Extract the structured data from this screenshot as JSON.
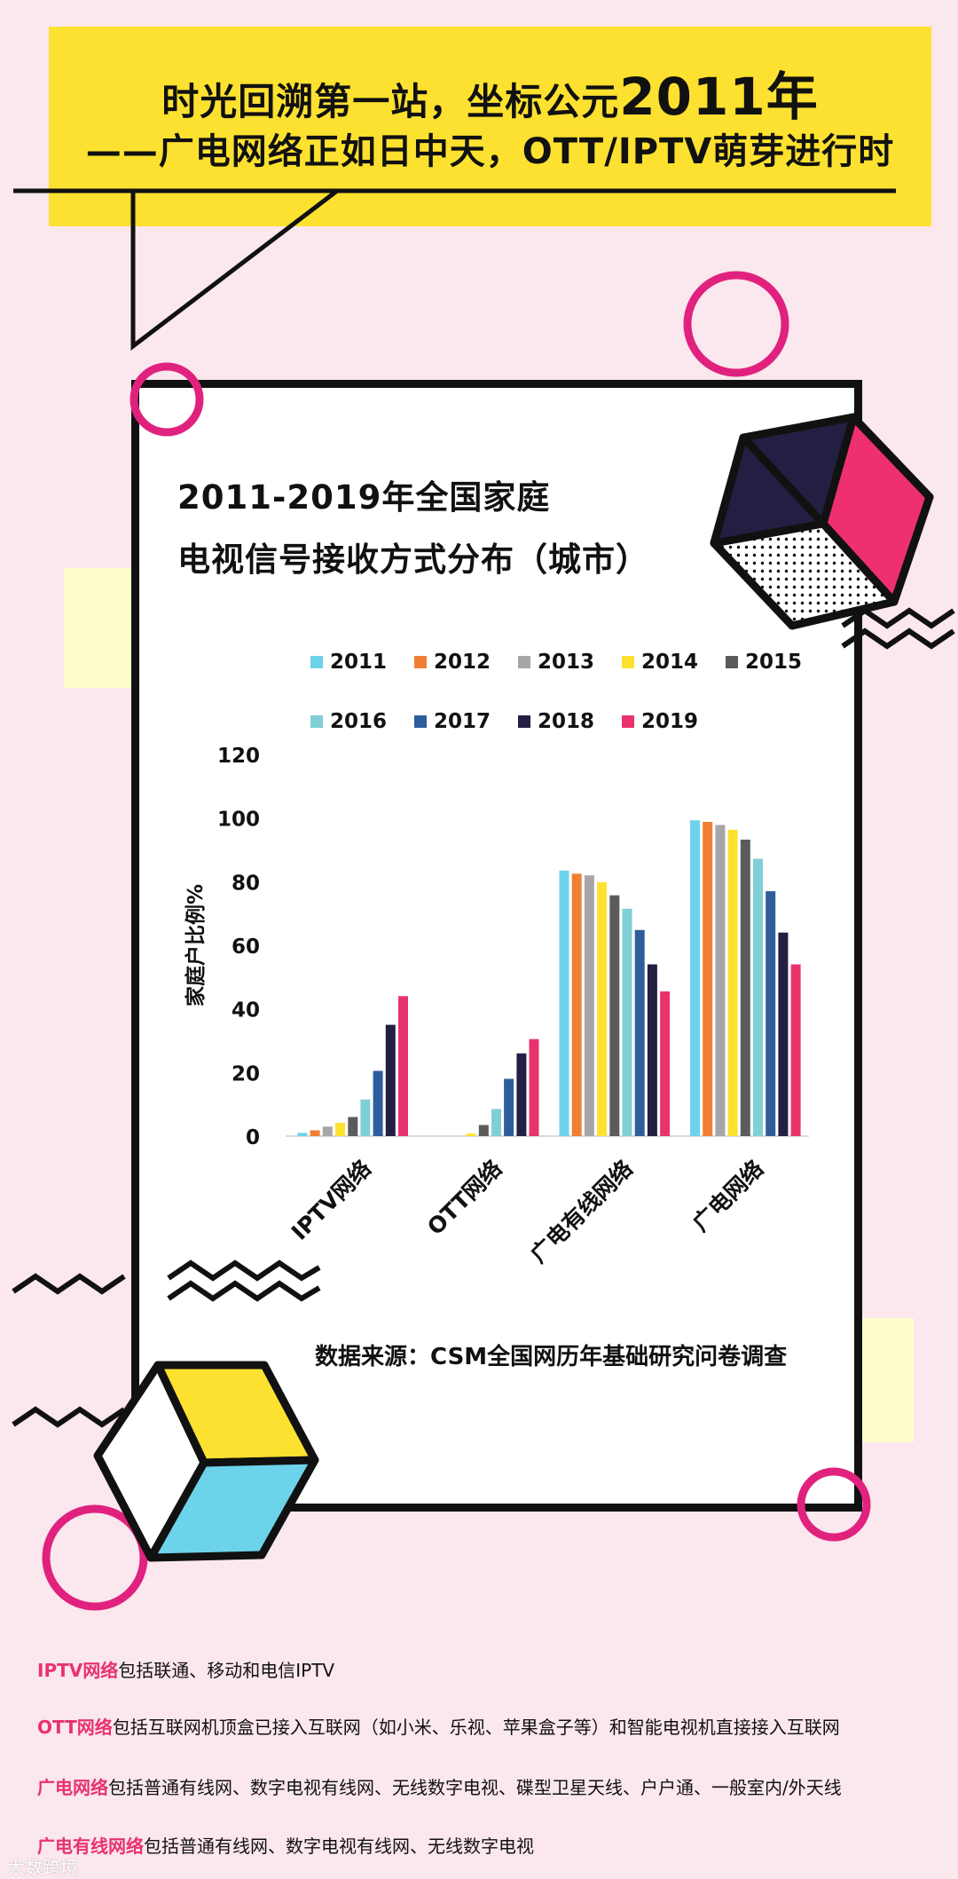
{
  "header": {
    "line1_prefix": "时光回溯第一站，坐标公元",
    "line1_year": "2011年",
    "line2": "——广电网络正如日中天，OTT/IPTV萌芽进行时"
  },
  "colors": {
    "background": "#fbe7ee",
    "banner": "#fde130",
    "accent_pink": "#e8336d",
    "cube_navy": "#231f42",
    "cube_yellow": "#fde130",
    "cube_cyan": "#6dd3ea"
  },
  "chart_data": {
    "type": "bar",
    "title_line1": "2011-2019年全国家庭",
    "title_line2": "电视信号接收方式分布（城市）",
    "xlabel": "",
    "ylabel": "家庭户比例%",
    "ylim": [
      0,
      120
    ],
    "yticks": [
      0,
      20,
      40,
      60,
      80,
      100,
      120
    ],
    "categories": [
      "IPTV网络",
      "OTT网络",
      "广电有线网络",
      "广电网络"
    ],
    "legend_position": "top",
    "grid": false,
    "series": [
      {
        "name": "2011",
        "color": "#6dd3ea",
        "values": [
          1,
          0,
          83.5,
          99.3
        ]
      },
      {
        "name": "2012",
        "color": "#ee7f33",
        "values": [
          1.8,
          0,
          82.5,
          98.8
        ]
      },
      {
        "name": "2013",
        "color": "#a6a6a6",
        "values": [
          3,
          0,
          82,
          97.8
        ]
      },
      {
        "name": "2014",
        "color": "#fde130",
        "values": [
          4.2,
          0.8,
          79.8,
          96.3
        ]
      },
      {
        "name": "2015",
        "color": "#5b5b5b",
        "values": [
          6,
          3.5,
          75.7,
          93.2
        ]
      },
      {
        "name": "2016",
        "color": "#7fcfd6",
        "values": [
          11.5,
          8.5,
          71.5,
          87.2
        ]
      },
      {
        "name": "2017",
        "color": "#2e5d9c",
        "values": [
          20.5,
          18,
          64.8,
          77
        ]
      },
      {
        "name": "2018",
        "color": "#231f42",
        "values": [
          35,
          26,
          54,
          64
        ]
      },
      {
        "name": "2019",
        "color": "#e8336d",
        "values": [
          44,
          30.5,
          45.5,
          54
        ]
      }
    ]
  },
  "source": "数据来源：CSM全国网历年基础研究问卷调查",
  "definitions": [
    {
      "term": "IPTV网络",
      "text": "包括联通、移动和电信IPTV"
    },
    {
      "term": "OTT网络",
      "text": "包括互联网机顶盒已接入互联网（如小米、乐视、苹果盒子等）和智能电视机直接接入互联网"
    },
    {
      "term": "广电网络",
      "text": "包括普通有线网、数字电视有线网、无线数字电视、碟型卫星天线、户户通、一般室内/外天线"
    },
    {
      "term": "广电有线网络",
      "text": "包括普通有线网、数字电视有线网、无线数字电视"
    }
  ],
  "watermark": "大数跨境"
}
